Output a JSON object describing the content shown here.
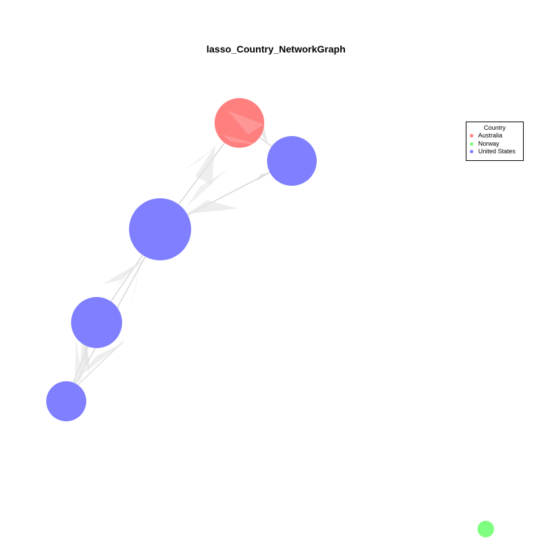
{
  "title": "lasso_Country_NetworkGraph",
  "legend": {
    "title": "Country",
    "items": [
      {
        "label": "Australia",
        "color": "#ff7f7f"
      },
      {
        "label": "Norway",
        "color": "#7fff7f"
      },
      {
        "label": "United States",
        "color": "#7f7fff"
      }
    ]
  },
  "colors": {
    "edge": "#d9d9d9",
    "edge_arrow": "#e6e6e6"
  }
}
